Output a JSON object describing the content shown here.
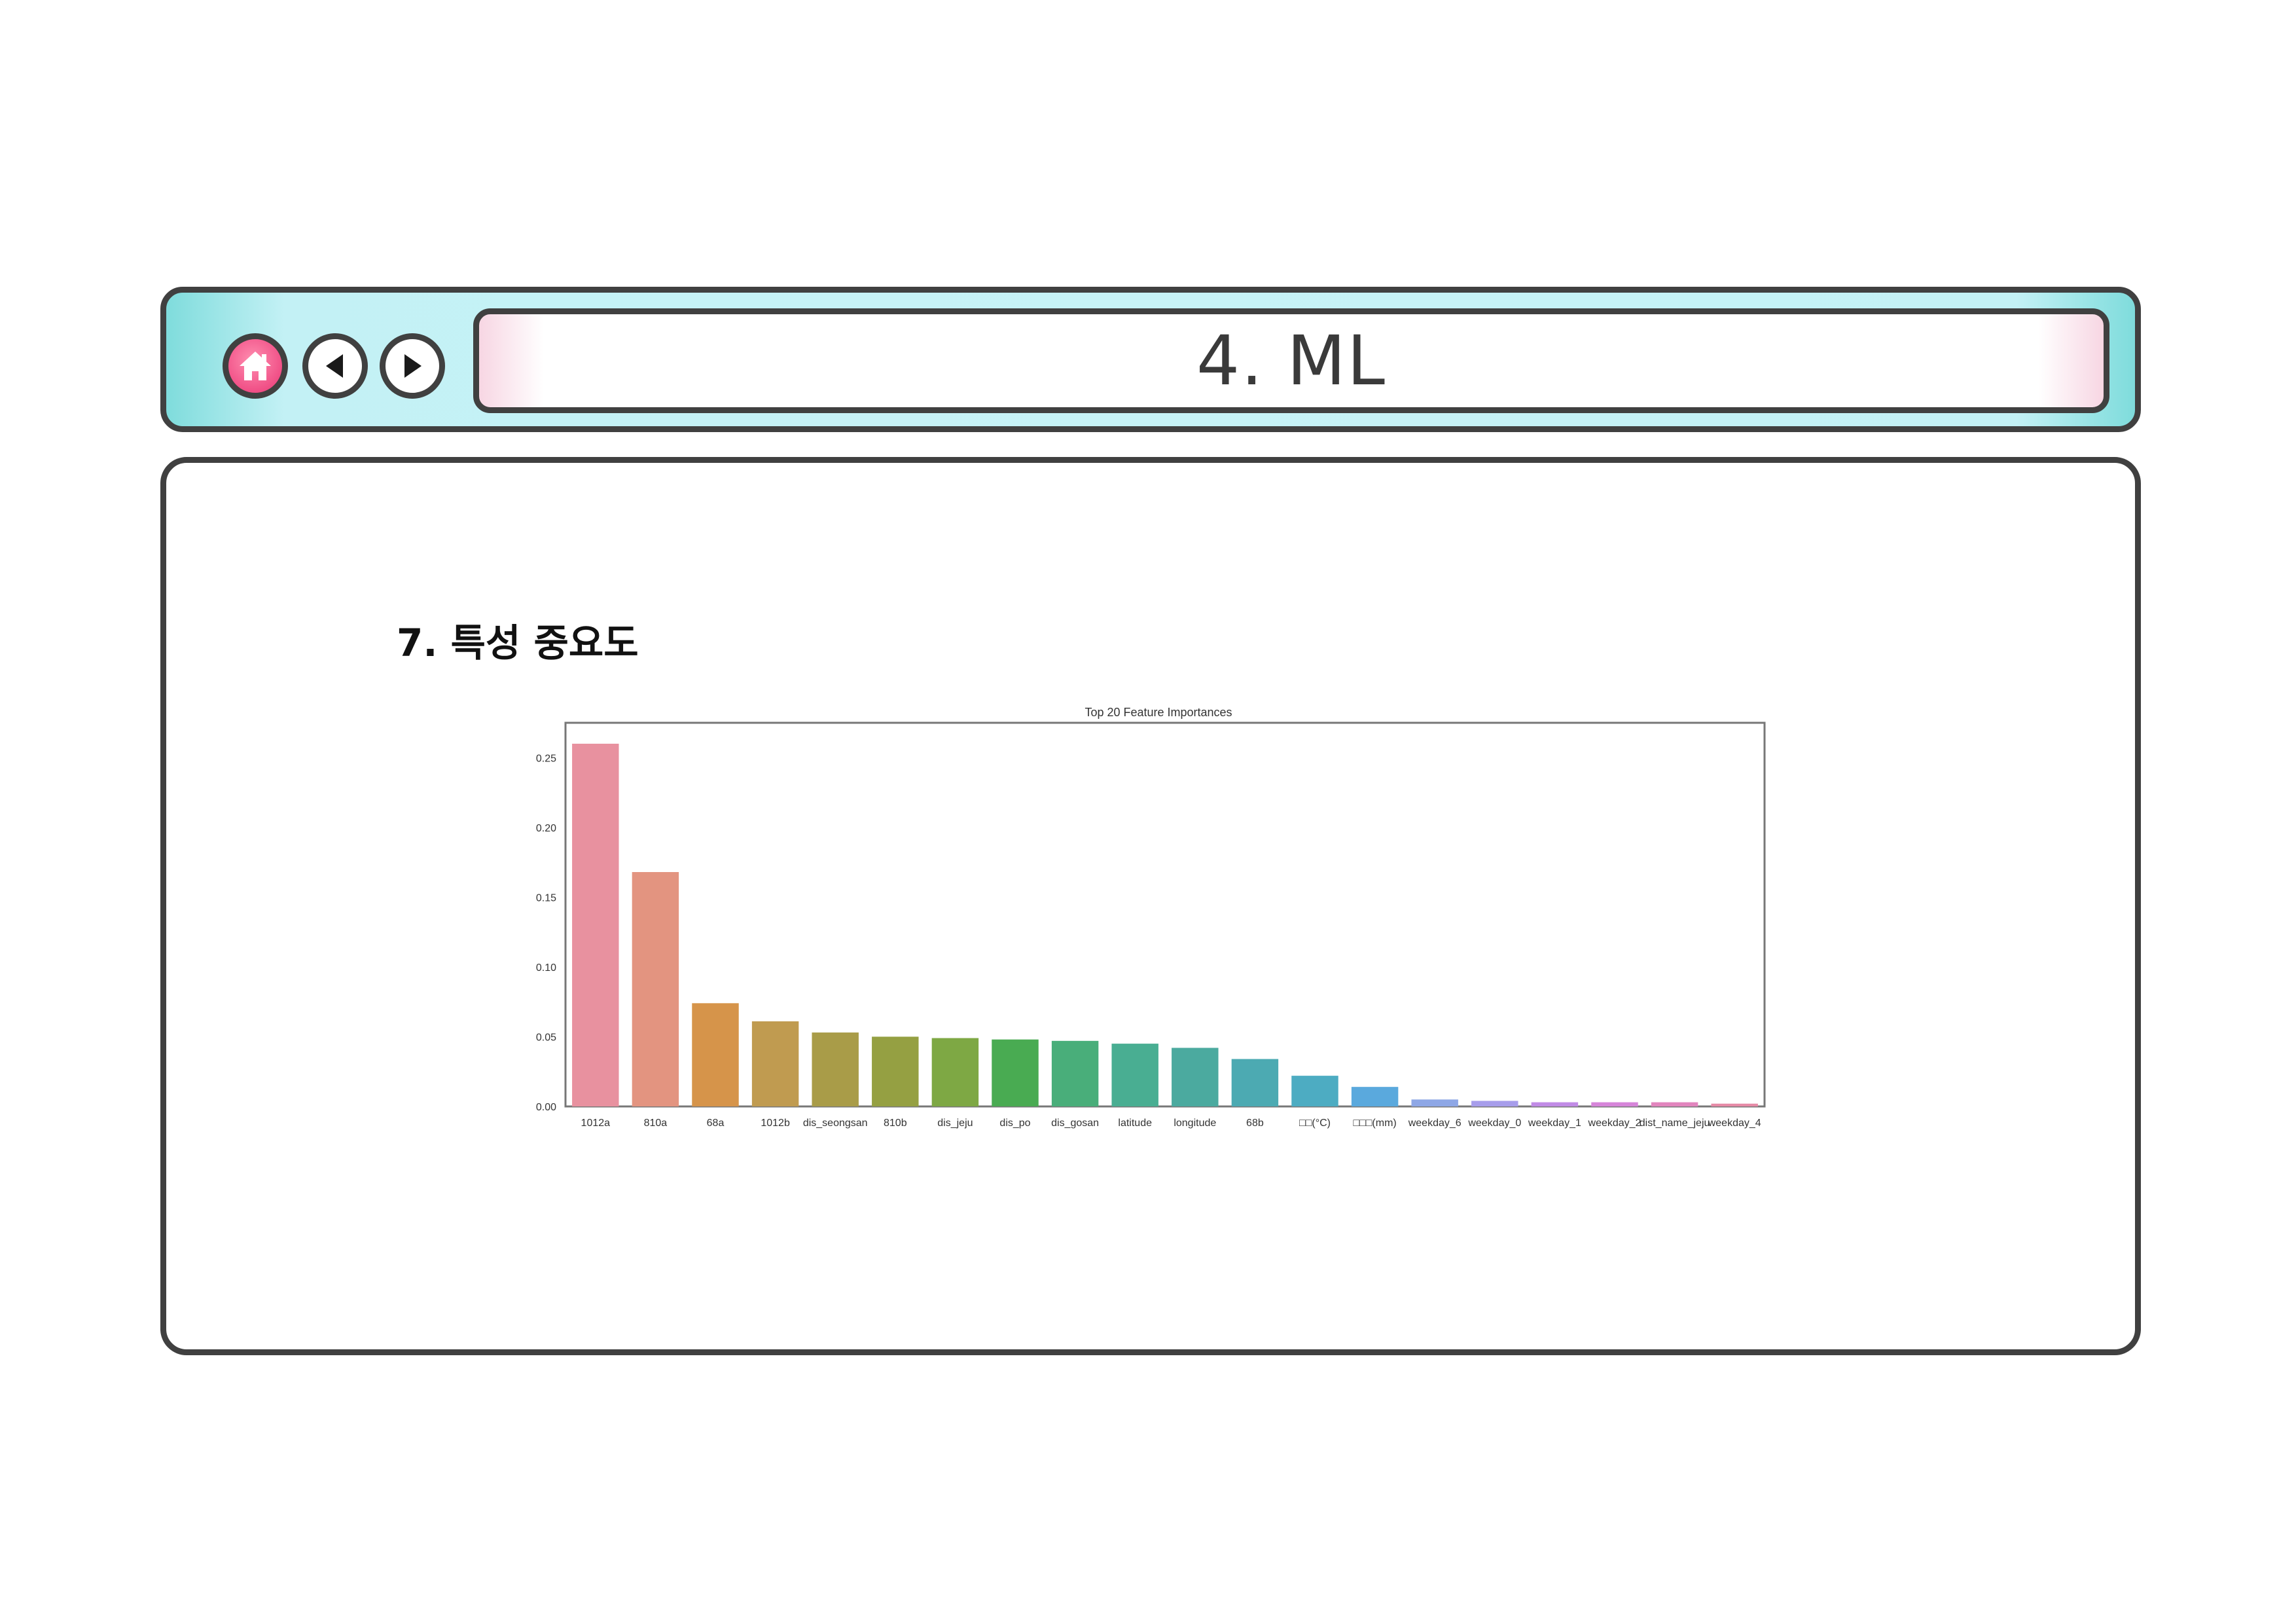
{
  "window": {
    "title": "4. ML",
    "buttons": {
      "home_icon": "home-icon",
      "back_icon": "triangle-left-icon",
      "forward_icon": "triangle-right-icon"
    },
    "colors": {
      "bar_bg": "#c7f3f7",
      "home_button": "#f04f86",
      "border": "#404040"
    }
  },
  "section": {
    "title": "7. 특성 중요도"
  },
  "chart_data": {
    "type": "bar",
    "title": "Top 20 Feature Importances",
    "xlabel": "",
    "ylabel": "",
    "ylim": [
      0,
      0.275
    ],
    "yticks": [
      "0.00",
      "0.05",
      "0.10",
      "0.15",
      "0.20",
      "0.25"
    ],
    "grid": false,
    "categories": [
      "1012a",
      "810a",
      "68a",
      "1012b",
      "dis_seongsan",
      "810b",
      "dis_jeju",
      "dis_po",
      "dis_gosan",
      "latitude",
      "longitude",
      "68b",
      "□□(°C)",
      "□□□(mm)",
      "weekday_6",
      "weekday_0",
      "weekday_1",
      "weekday_2",
      "dist_name_jeju",
      "weekday_4"
    ],
    "values": [
      0.26,
      0.168,
      0.074,
      0.061,
      0.053,
      0.05,
      0.049,
      0.048,
      0.047,
      0.045,
      0.042,
      0.034,
      0.022,
      0.014,
      0.005,
      0.004,
      0.003,
      0.003,
      0.003,
      0.002
    ],
    "colors": [
      "#e8919f",
      "#e39480",
      "#d6944a",
      "#c09b50",
      "#a99c48",
      "#95a042",
      "#7ea844",
      "#49ab52",
      "#49ae7a",
      "#49ae92",
      "#4baa9f",
      "#4caab2",
      "#4dacc2",
      "#5aa9dd",
      "#8ea7e6",
      "#a79deb",
      "#c18be6",
      "#d685d9",
      "#e285be",
      "#e68aa6"
    ]
  }
}
